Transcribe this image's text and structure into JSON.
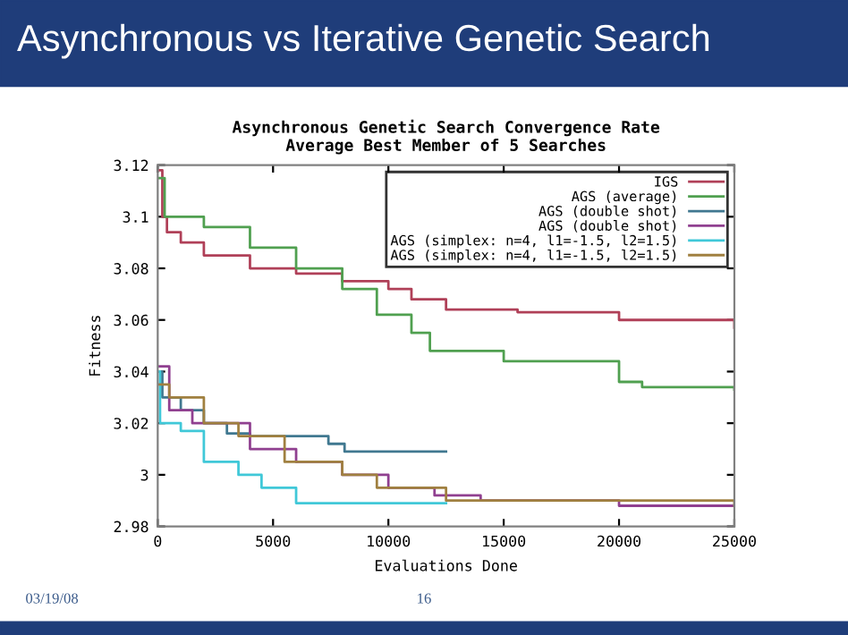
{
  "chart_data": {
    "type": "step",
    "title": "Asynchronous vs Iterative Genetic Search",
    "subtitle": "Asynchronous Genetic Search Convergence Rate\nAverage Best Member of 5 Searches",
    "xlabel": "Evaluations Done",
    "ylabel": "Fitness",
    "annotations": [
      "03/19/08",
      "16"
    ],
    "xlim": [
      0,
      25000
    ],
    "xticks": [
      0,
      5000,
      10000,
      15000,
      20000,
      25000
    ],
    "ylim": [
      2.98,
      3.12
    ],
    "yticks": [
      2.98,
      3,
      3.02,
      3.04,
      3.06,
      3.08,
      3.1,
      3.12
    ],
    "grid": false,
    "legend": "top right",
    "marker": "none",
    "line_style": "solid",
    "series": [
      {
        "name": "IGS",
        "color": "#b04058",
        "x": [
          0,
          200,
          400,
          1000,
          2000,
          4000,
          6000,
          8000,
          10000,
          11000,
          12500,
          15600,
          20000,
          25000
        ],
        "values": [
          3.118,
          3.1,
          3.094,
          3.09,
          3.085,
          3.08,
          3.078,
          3.075,
          3.072,
          3.068,
          3.064,
          3.063,
          3.06,
          3.057
        ]
      },
      {
        "name": "AGS (average)",
        "color": "#50a050",
        "x": [
          0,
          300,
          2000,
          4000,
          6000,
          8000,
          9500,
          11000,
          11800,
          15000,
          20000,
          21000,
          25000
        ],
        "values": [
          3.115,
          3.1,
          3.096,
          3.088,
          3.08,
          3.072,
          3.062,
          3.055,
          3.048,
          3.044,
          3.036,
          3.034,
          3.033
        ]
      },
      {
        "name": "AGS (double shot)",
        "color": "#407890",
        "x": [
          0,
          200,
          1000,
          2000,
          3000,
          4000,
          7400,
          8100,
          12500
        ],
        "values": [
          3.04,
          3.03,
          3.025,
          3.02,
          3.016,
          3.015,
          3.012,
          3.009,
          3.009
        ]
      },
      {
        "name": "AGS (double shot)",
        "color": "#904090",
        "x": [
          0,
          500,
          1500,
          4000,
          6000,
          8000,
          10000,
          12000,
          14000,
          20000,
          25000
        ],
        "values": [
          3.042,
          3.025,
          3.02,
          3.01,
          3.005,
          3.0,
          2.995,
          2.992,
          2.99,
          2.988,
          2.988
        ]
      },
      {
        "name": "AGS (simplex: n=4, l1=-1.5, l2=1.5)",
        "color": "#40c8d8",
        "x": [
          0,
          100,
          1000,
          2000,
          3500,
          4500,
          6000,
          12500
        ],
        "values": [
          3.04,
          3.02,
          3.017,
          3.005,
          3.0,
          2.995,
          2.989,
          2.989
        ]
      },
      {
        "name": "AGS (simplex: n=4, l1=-1.5, l2=1.5)",
        "color": "#a08040",
        "x": [
          0,
          500,
          2000,
          3500,
          5500,
          8000,
          9500,
          12500,
          25000
        ],
        "values": [
          3.035,
          3.03,
          3.02,
          3.015,
          3.005,
          3.0,
          2.995,
          2.99,
          2.988
        ]
      }
    ]
  }
}
